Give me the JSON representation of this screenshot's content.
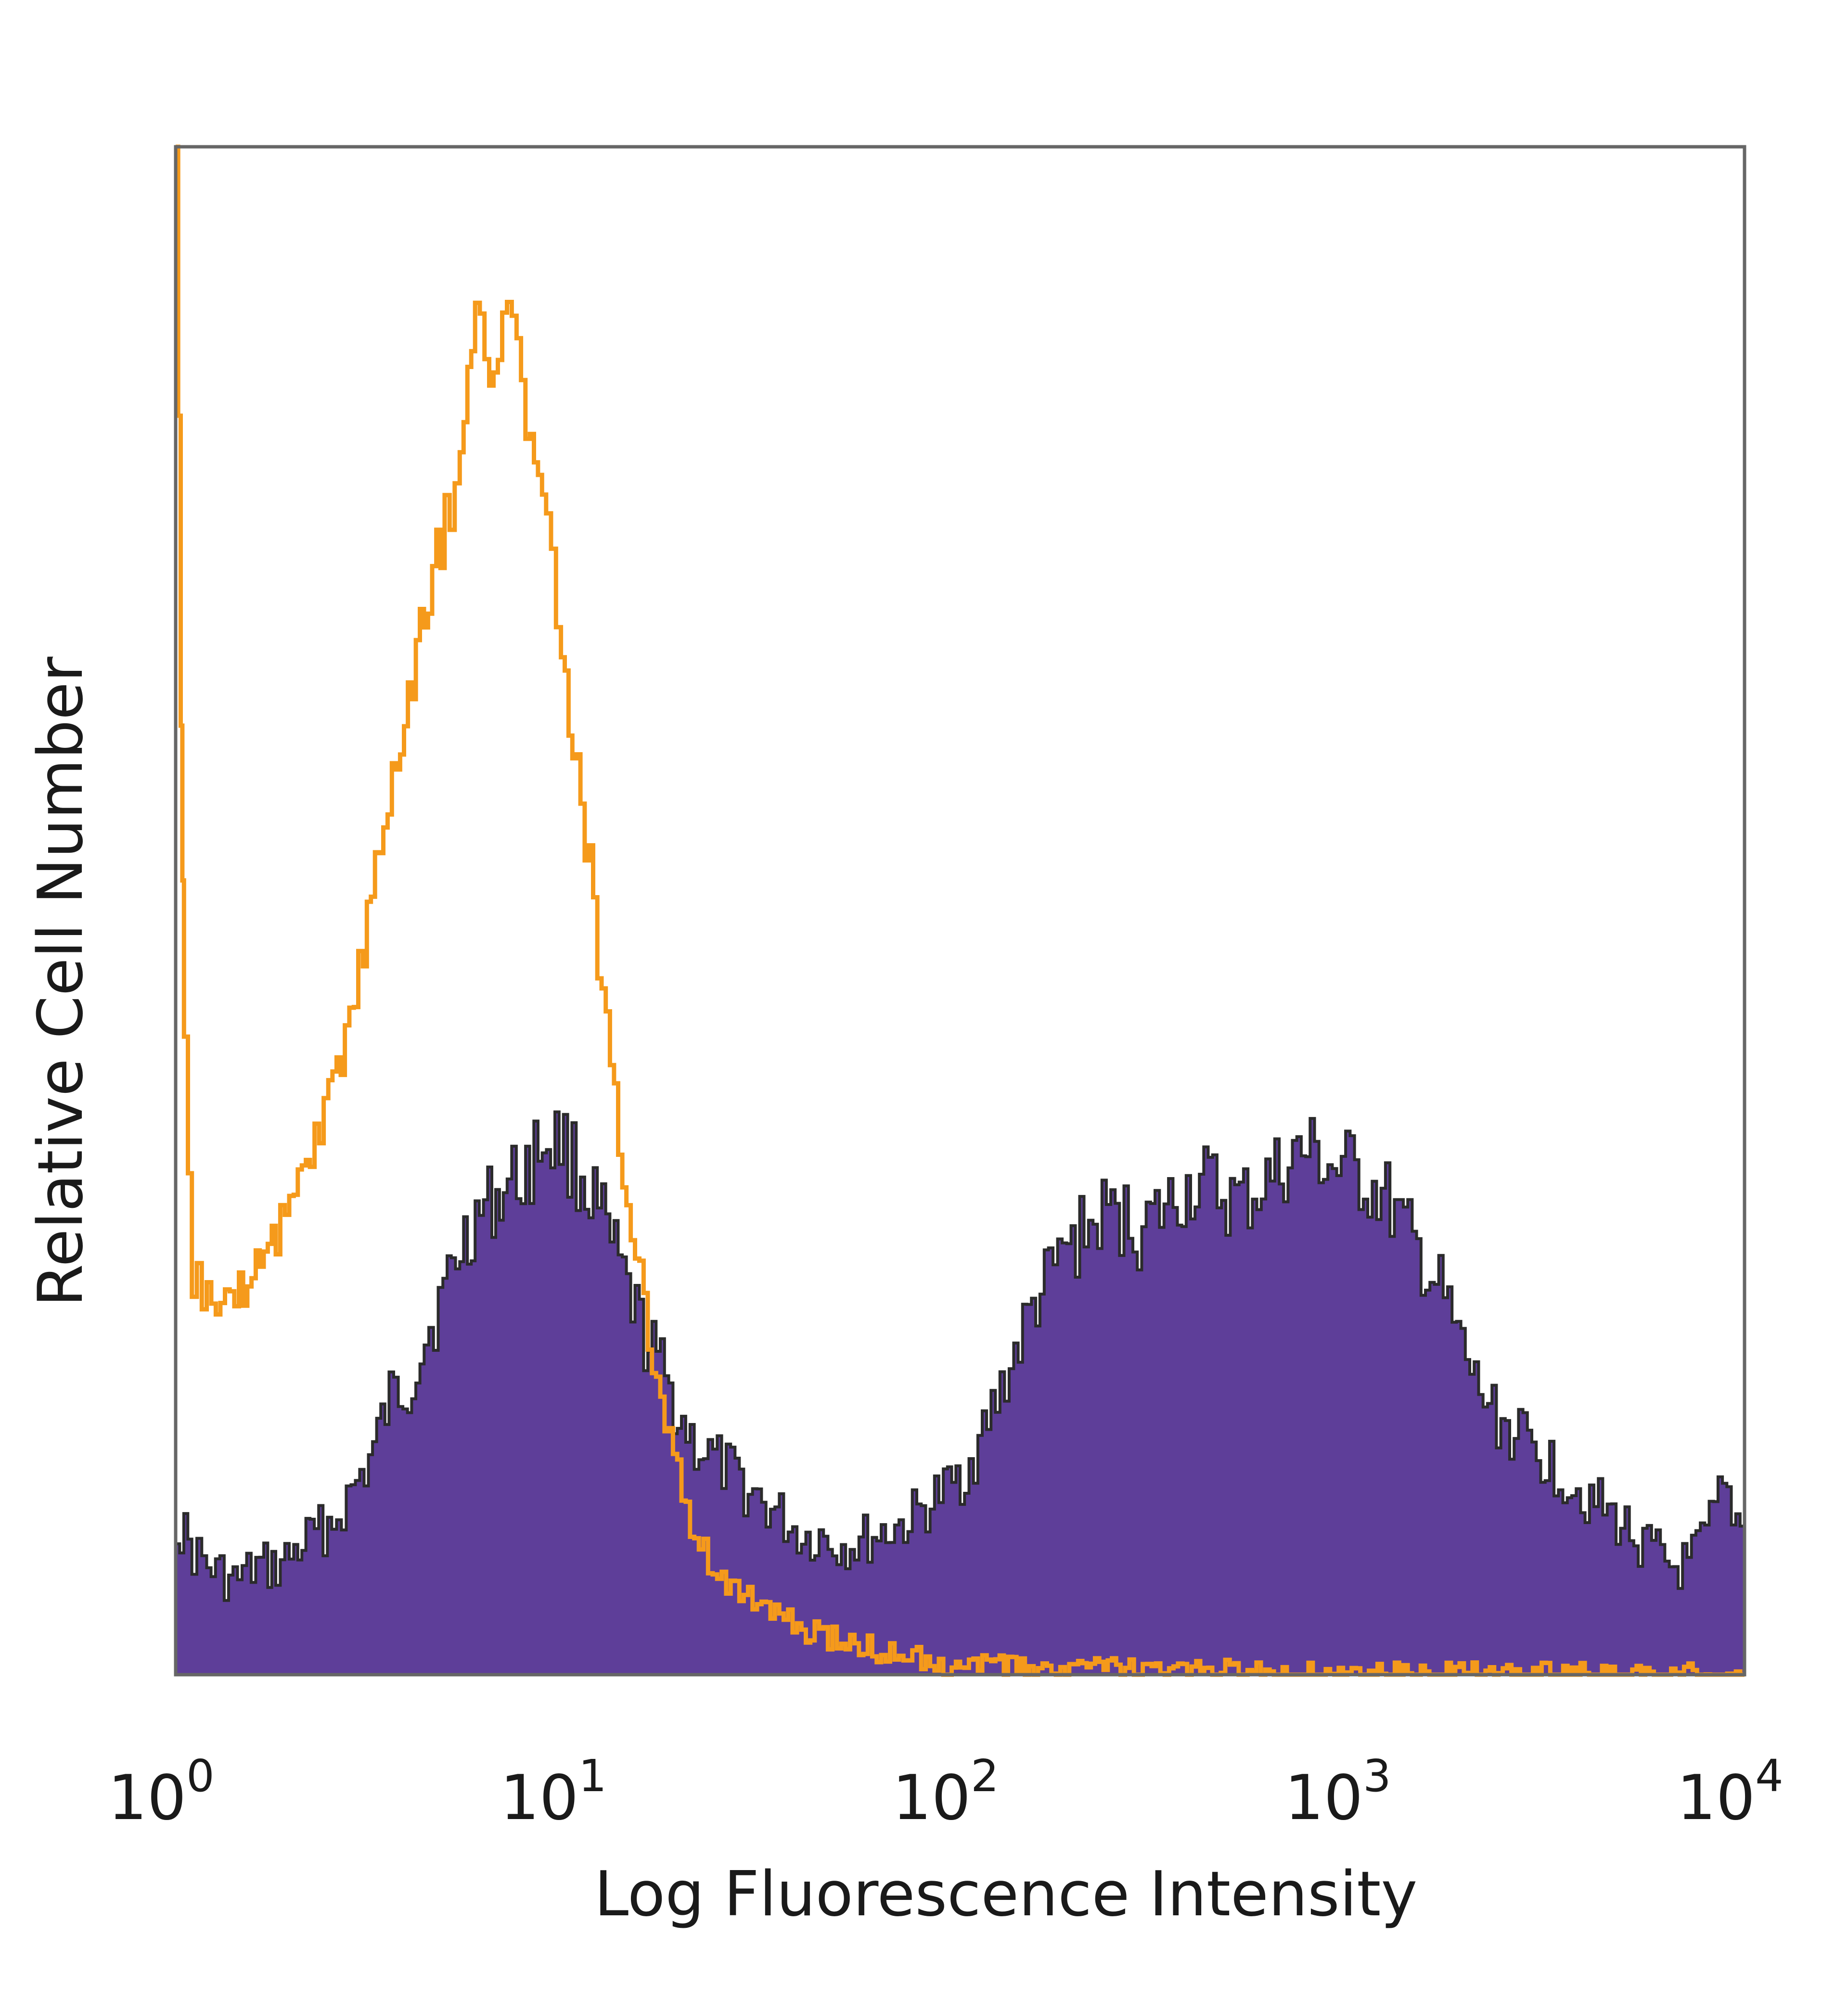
{
  "chart_data": {
    "type": "area",
    "title": "",
    "xlabel": "Log Fluorescence Intensity",
    "ylabel": "Relative Cell Number",
    "x_scale": "log",
    "xlim": [
      1,
      10000
    ],
    "ylim": [
      0,
      100
    ],
    "grid": false,
    "legend": "none",
    "x_ticks": [
      {
        "base": "10",
        "exp": "0",
        "value": 1
      },
      {
        "base": "10",
        "exp": "1",
        "value": 10
      },
      {
        "base": "10",
        "exp": "2",
        "value": 100
      },
      {
        "base": "10",
        "exp": "3",
        "value": 1000
      },
      {
        "base": "10",
        "exp": "4",
        "value": 10000
      }
    ],
    "series": [
      {
        "style": "filled",
        "fill_color": "#5e3e99",
        "edge_color": "#2b2b2b",
        "points": [
          [
            1,
            10
          ],
          [
            1.1,
            8
          ],
          [
            1.2,
            7
          ],
          [
            1.4,
            6
          ],
          [
            1.6,
            7
          ],
          [
            1.8,
            7
          ],
          [
            2,
            8
          ],
          [
            2.2,
            9
          ],
          [
            2.5,
            10
          ],
          [
            2.8,
            12
          ],
          [
            3.1,
            14
          ],
          [
            3.5,
            18
          ],
          [
            3.9,
            19
          ],
          [
            4.3,
            22
          ],
          [
            4.8,
            25
          ],
          [
            5.3,
            28
          ],
          [
            5.8,
            30
          ],
          [
            6.4,
            31
          ],
          [
            7,
            32
          ],
          [
            7.8,
            33
          ],
          [
            8.6,
            35
          ],
          [
            9.5,
            35
          ],
          [
            10.5,
            33
          ],
          [
            11.6,
            31
          ],
          [
            12.8,
            28
          ],
          [
            14.1,
            25
          ],
          [
            15.6,
            22
          ],
          [
            17.2,
            20
          ],
          [
            19,
            17
          ],
          [
            21,
            15
          ],
          [
            23.4,
            14
          ],
          [
            26,
            13
          ],
          [
            28.8,
            12
          ],
          [
            32,
            11
          ],
          [
            35.5,
            10
          ],
          [
            39.4,
            9
          ],
          [
            43.7,
            9
          ],
          [
            48.5,
            8.5
          ],
          [
            53.8,
            8.5
          ],
          [
            59.7,
            9
          ],
          [
            66.3,
            9.5
          ],
          [
            73.6,
            10
          ],
          [
            81.7,
            11
          ],
          [
            90.6,
            12
          ],
          [
            100,
            13
          ],
          [
            111,
            15
          ],
          [
            123,
            18
          ],
          [
            137,
            21
          ],
          [
            152,
            24
          ],
          [
            168,
            26
          ],
          [
            187,
            28
          ],
          [
            207,
            29
          ],
          [
            230,
            30
          ],
          [
            255,
            30
          ],
          [
            283,
            29
          ],
          [
            314,
            30
          ],
          [
            349,
            31
          ],
          [
            387,
            32
          ],
          [
            429,
            32
          ],
          [
            476,
            31
          ],
          [
            528,
            31
          ],
          [
            586,
            32
          ],
          [
            651,
            33
          ],
          [
            722,
            34
          ],
          [
            801,
            34
          ],
          [
            889,
            33
          ],
          [
            987,
            33
          ],
          [
            1095,
            32
          ],
          [
            1215,
            31
          ],
          [
            1349,
            29
          ],
          [
            1497,
            27
          ],
          [
            1661,
            25
          ],
          [
            1843,
            22
          ],
          [
            2045,
            19
          ],
          [
            2270,
            17
          ],
          [
            2519,
            16
          ],
          [
            2795,
            15
          ],
          [
            3102,
            14
          ],
          [
            3442,
            13
          ],
          [
            3820,
            12
          ],
          [
            4239,
            11
          ],
          [
            4704,
            10
          ],
          [
            5220,
            9
          ],
          [
            5793,
            8
          ],
          [
            6428,
            7
          ],
          [
            7134,
            7
          ],
          [
            7916,
            9
          ],
          [
            8785,
            12
          ],
          [
            10000,
            9
          ]
        ]
      },
      {
        "style": "outline",
        "line_color": "#f59a1b",
        "points": [
          [
            1,
            100
          ],
          [
            1.03,
            60
          ],
          [
            1.05,
            40
          ],
          [
            1.1,
            26
          ],
          [
            1.2,
            25
          ],
          [
            1.3,
            24
          ],
          [
            1.45,
            25
          ],
          [
            1.6,
            27
          ],
          [
            1.8,
            29
          ],
          [
            2,
            32
          ],
          [
            2.2,
            34
          ],
          [
            2.45,
            38
          ],
          [
            2.7,
            42
          ],
          [
            3,
            48
          ],
          [
            3.3,
            54
          ],
          [
            3.65,
            60
          ],
          [
            4,
            66
          ],
          [
            4.4,
            70
          ],
          [
            4.85,
            76
          ],
          [
            5.3,
            80
          ],
          [
            5.8,
            88
          ],
          [
            6.3,
            84
          ],
          [
            6.8,
            90
          ],
          [
            7.4,
            86
          ],
          [
            8,
            82
          ],
          [
            8.8,
            74
          ],
          [
            9.6,
            66
          ],
          [
            10.5,
            60
          ],
          [
            11.6,
            50
          ],
          [
            12.8,
            40
          ],
          [
            14.1,
            31
          ],
          [
            15.6,
            24
          ],
          [
            17.2,
            18
          ],
          [
            19,
            13
          ],
          [
            21,
            9
          ],
          [
            23.4,
            7
          ],
          [
            26,
            6
          ],
          [
            28.8,
            5
          ],
          [
            32,
            4
          ],
          [
            35.5,
            3.5
          ],
          [
            39.4,
            3
          ],
          [
            43.7,
            2.5
          ],
          [
            48.5,
            2.2
          ],
          [
            53.8,
            2
          ],
          [
            59.7,
            1.6
          ],
          [
            66.3,
            1.3
          ],
          [
            73.6,
            1.1
          ],
          [
            81.7,
            0.9
          ],
          [
            90.6,
            0.7
          ],
          [
            100,
            0.6
          ],
          [
            120,
            0.5
          ],
          [
            150,
            0.4
          ],
          [
            200,
            0.3
          ],
          [
            250,
            0.3
          ],
          [
            300,
            0.2
          ],
          [
            350,
            0.15
          ],
          [
            400,
            0.1
          ],
          [
            450,
            0.3
          ],
          [
            500,
            0.1
          ],
          [
            600,
            0
          ],
          [
            10000,
            0
          ]
        ]
      }
    ]
  }
}
